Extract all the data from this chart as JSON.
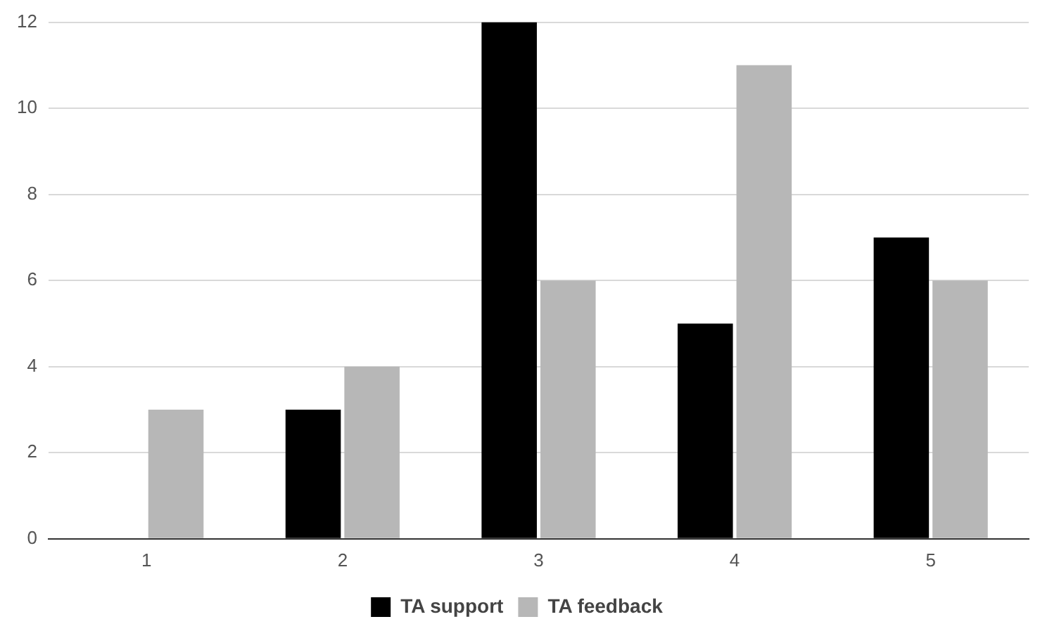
{
  "chart_data": {
    "type": "bar",
    "categories": [
      "1",
      "2",
      "3",
      "4",
      "5"
    ],
    "series": [
      {
        "name": "TA support",
        "color": "#000000",
        "values": [
          0,
          3,
          12,
          5,
          7
        ]
      },
      {
        "name": "TA feedback",
        "color": "#b7b7b7",
        "values": [
          3,
          4,
          6,
          11,
          6
        ]
      }
    ],
    "ylim": [
      0,
      12
    ],
    "yticks": [
      0,
      2,
      4,
      6,
      8,
      10,
      12
    ],
    "grid": "y",
    "legend": "bottom"
  }
}
